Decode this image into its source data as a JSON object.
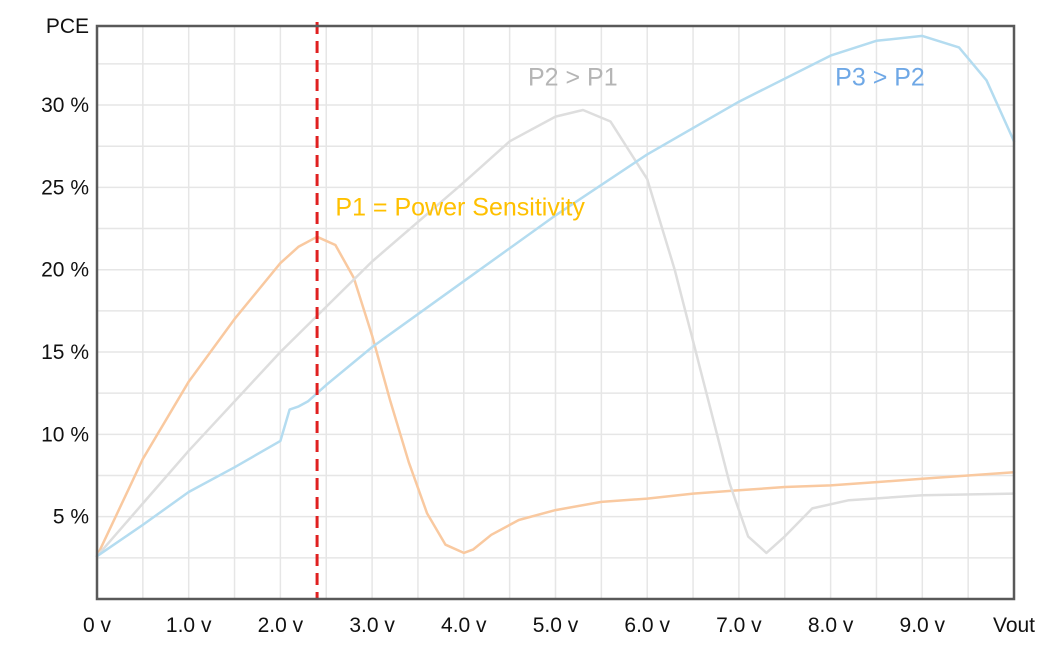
{
  "chart_data": {
    "type": "line",
    "title": "",
    "ylabel": "PCE",
    "xlabel": "Vout",
    "xlim": [
      0,
      10
    ],
    "ylim": [
      0,
      34.8
    ],
    "x_ticks": [
      {
        "value": 0,
        "label": "0 v"
      },
      {
        "value": 1,
        "label": "1.0 v"
      },
      {
        "value": 2,
        "label": "2.0 v"
      },
      {
        "value": 3,
        "label": "3.0 v"
      },
      {
        "value": 4,
        "label": "4.0 v"
      },
      {
        "value": 5,
        "label": "5.0 v"
      },
      {
        "value": 6,
        "label": "6.0 v"
      },
      {
        "value": 7,
        "label": "7.0 v"
      },
      {
        "value": 8,
        "label": "8.0 v"
      },
      {
        "value": 9,
        "label": "9.0 v"
      },
      {
        "value": 10,
        "label": "Vout"
      }
    ],
    "y_ticks": [
      {
        "value": 5,
        "label": "5 %"
      },
      {
        "value": 10,
        "label": "10 %"
      },
      {
        "value": 15,
        "label": "15 %"
      },
      {
        "value": 20,
        "label": "20 %"
      },
      {
        "value": 25,
        "label": "25 %"
      },
      {
        "value": 30,
        "label": "30 %"
      }
    ],
    "y_top_label": {
      "value": 34.8,
      "label": "PCE"
    },
    "grid": true,
    "series": [
      {
        "name": "P1",
        "color": "#f9c9a0",
        "x": [
          0,
          0.5,
          1.0,
          1.5,
          2.0,
          2.2,
          2.4,
          2.6,
          2.8,
          3.0,
          3.2,
          3.4,
          3.6,
          3.8,
          4.0,
          4.1,
          4.3,
          4.6,
          5.0,
          5.5,
          6.0,
          6.5,
          7.0,
          7.5,
          8.0,
          8.5,
          9.0,
          9.5,
          10.0
        ],
        "y": [
          2.6,
          8.5,
          13.2,
          17.0,
          20.4,
          21.4,
          22.0,
          21.5,
          19.5,
          16.0,
          12.0,
          8.3,
          5.2,
          3.3,
          2.8,
          3.0,
          3.9,
          4.8,
          5.4,
          5.9,
          6.1,
          6.4,
          6.6,
          6.8,
          6.9,
          7.1,
          7.3,
          7.5,
          7.7
        ]
      },
      {
        "name": "P2",
        "color": "#dedede",
        "x": [
          0,
          0.5,
          1.0,
          2.0,
          3.0,
          4.0,
          4.5,
          5.0,
          5.3,
          5.6,
          6.0,
          6.3,
          6.6,
          6.9,
          7.1,
          7.3,
          7.5,
          7.8,
          8.2,
          9.0,
          10.0
        ],
        "y": [
          2.6,
          5.8,
          9.0,
          15.0,
          20.5,
          25.3,
          27.8,
          29.3,
          29.7,
          29.0,
          25.5,
          20.0,
          13.5,
          7.0,
          3.8,
          2.8,
          3.8,
          5.5,
          6.0,
          6.3,
          6.4
        ]
      },
      {
        "name": "P3",
        "color": "#b4dcf0",
        "x": [
          0,
          0.5,
          1.0,
          1.5,
          2.0,
          2.1,
          2.2,
          2.3,
          2.5,
          3.0,
          4.0,
          5.0,
          6.0,
          7.0,
          8.0,
          8.5,
          9.0,
          9.4,
          9.7,
          10.0
        ],
        "y": [
          2.6,
          4.5,
          6.5,
          8.0,
          9.6,
          11.5,
          11.7,
          12.0,
          13.0,
          15.3,
          19.3,
          23.3,
          27.0,
          30.2,
          33.0,
          33.9,
          34.2,
          33.5,
          31.5,
          27.8
        ]
      }
    ],
    "annotations": [
      {
        "text": "P1 = Power Sensitivity",
        "color": "#ffc000",
        "x": 2.6,
        "y": 23.3
      },
      {
        "text": "P2 > P1",
        "color": "#b5b5b5",
        "x": 4.7,
        "y": 31.2
      },
      {
        "text": "P3 > P2",
        "color": "#6fa8e6",
        "x": 8.05,
        "y": 31.2
      }
    ],
    "reference_line": {
      "x": 2.4,
      "style": "dashed",
      "color": "#e02020"
    }
  }
}
